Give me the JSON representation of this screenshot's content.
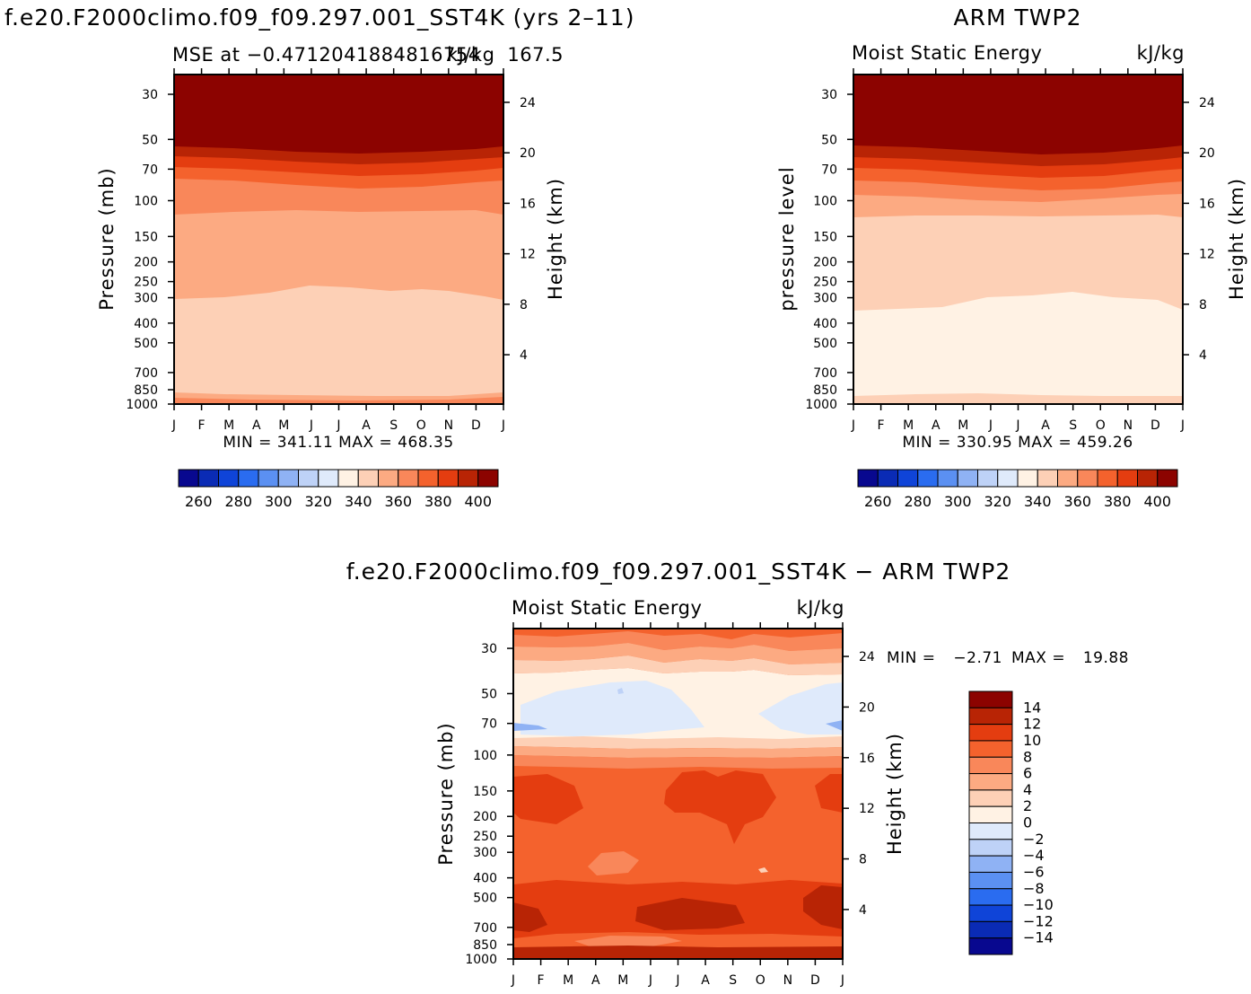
{
  "colors": {
    "abs_scale": [
      "#08088f",
      "#0a2bb5",
      "#0f44d8",
      "#2a6cf0",
      "#5b90f2",
      "#8fb2f4",
      "#bed2f7",
      "#dfeafb",
      "#fff2e4",
      "#fdd0b6",
      "#fcaa82",
      "#f9875a",
      "#f4622d",
      "#e43d10",
      "#b82405",
      "#8c0300"
    ],
    "diff_scale": [
      "#08088f",
      "#0a2bb5",
      "#0f44d8",
      "#2a6cf0",
      "#5b90f2",
      "#8fb2f4",
      "#bed2f7",
      "#dfeafb",
      "#fff2e4",
      "#fdd0b6",
      "#fcaa82",
      "#f9875a",
      "#f4622d",
      "#e43d10",
      "#b82405",
      "#8c0300"
    ]
  },
  "chart_data": [
    {
      "type": "contour",
      "id": "model",
      "title": "f.e20.F2000climo.f09_f09.297.001_SST4K (yrs 2–11)",
      "left_label": "MSE at −0.4712041884816754",
      "right_label": "167.5",
      "units_label": "kJ/kg",
      "ylabel": "Pressure (mb)",
      "ylabel_right": "Height (km)",
      "months": [
        "J",
        "F",
        "M",
        "A",
        "M",
        "J",
        "J",
        "A",
        "S",
        "O",
        "N",
        "D",
        "J"
      ],
      "pressure_ticks": [
        "30",
        "50",
        "70",
        "100",
        "150",
        "200",
        "250",
        "300",
        "400",
        "500",
        "700",
        "850",
        "1000"
      ],
      "height_ticks": [
        "24",
        "20",
        "16",
        "12",
        "8",
        "4"
      ],
      "min_max": "MIN =  341.11  MAX =  468.35",
      "levels": [
        260,
        270,
        280,
        290,
        300,
        310,
        320,
        330,
        340,
        350,
        360,
        370,
        380,
        390,
        400
      ],
      "colorbar_labels": [
        "260",
        "280",
        "300",
        "320",
        "340",
        "360",
        "380",
        "400"
      ],
      "min": 341.11,
      "max": 468.35
    },
    {
      "type": "contour",
      "id": "obs",
      "title": "ARM TWP2",
      "left_label": "Moist Static Energy",
      "units_label": "kJ/kg",
      "ylabel": "pressure level",
      "ylabel_right": "Height (km)",
      "months": [
        "J",
        "F",
        "M",
        "A",
        "M",
        "J",
        "J",
        "A",
        "S",
        "O",
        "N",
        "D",
        "J"
      ],
      "pressure_ticks": [
        "30",
        "50",
        "70",
        "100",
        "150",
        "200",
        "250",
        "300",
        "400",
        "500",
        "700",
        "850",
        "1000"
      ],
      "height_ticks": [
        "24",
        "20",
        "16",
        "12",
        "8",
        "4"
      ],
      "min_max": "MIN =  330.95  MAX =  459.26",
      "levels": [
        260,
        270,
        280,
        290,
        300,
        310,
        320,
        330,
        340,
        350,
        360,
        370,
        380,
        390,
        400
      ],
      "colorbar_labels": [
        "260",
        "280",
        "300",
        "320",
        "340",
        "360",
        "380",
        "400"
      ],
      "min": 330.95,
      "max": 459.26
    },
    {
      "type": "contour",
      "id": "diff",
      "title": "f.e20.F2000climo.f09_f09.297.001_SST4K − ARM TWP2",
      "left_label": "Moist Static Energy",
      "units_label": "kJ/kg",
      "ylabel": "Pressure (mb)",
      "ylabel_right": "Height (km)",
      "months": [
        "J",
        "F",
        "M",
        "A",
        "M",
        "J",
        "J",
        "A",
        "S",
        "O",
        "N",
        "D",
        "J"
      ],
      "pressure_ticks": [
        "30",
        "50",
        "70",
        "100",
        "150",
        "200",
        "250",
        "300",
        "400",
        "500",
        "700",
        "850",
        "1000"
      ],
      "height_ticks": [
        "24",
        "20",
        "16",
        "12",
        "8",
        "4"
      ],
      "min_label": "MIN =",
      "min_value": "−2.71",
      "max_label": "MAX =",
      "max_value": "19.88",
      "levels": [
        -14,
        -12,
        -10,
        -8,
        -6,
        -4,
        -2,
        0,
        2,
        4,
        6,
        8,
        10,
        12,
        14
      ],
      "colorbar_labels": [
        "14",
        "12",
        "10",
        "8",
        "6",
        "4",
        "2",
        "0",
        "−2",
        "−4",
        "−6",
        "−8",
        "−10",
        "−12",
        "−14"
      ],
      "min": -2.71,
      "max": 19.88
    }
  ]
}
